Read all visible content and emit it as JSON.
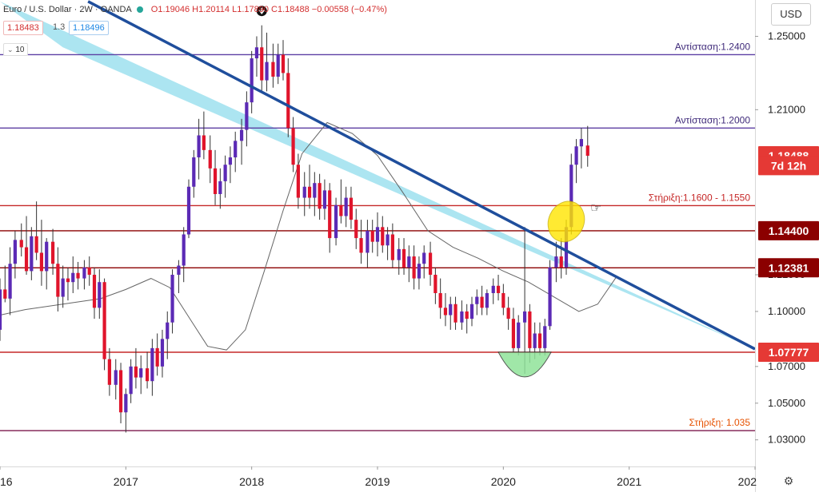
{
  "header": {
    "symbol": "Euro / U.S. Dollar · 2W · OANDA",
    "ohlc": "O1.19046 H1.20114 L1.17890 C1.18488 −0.00558 (−0.47%)",
    "bid": "1.18483",
    "spread": "1.3",
    "ask": "1.18496",
    "volume_label": "10",
    "currency_button": "USD",
    "colors": {
      "bid": "#d32f2f",
      "ask": "#1e88e5",
      "dot1": "#26a69a"
    }
  },
  "chart_data": {
    "type": "candlestick",
    "y_axis": {
      "ylim": [
        1.0155,
        1.2698
      ],
      "ticks": [
        "1.25000",
        "1.21000",
        "1.12000",
        "1.10000",
        "1.07000",
        "1.05000",
        "1.03000"
      ],
      "tick_values": [
        1.25,
        1.21,
        1.12,
        1.1,
        1.07,
        1.05,
        1.03
      ]
    },
    "x_axis": {
      "labels": [
        "16",
        "2017",
        "2018",
        "2019",
        "2020",
        "2021",
        "202"
      ],
      "label_values": [
        2016.0,
        2017.0,
        2018.0,
        2019.0,
        2020.0,
        2021.0,
        2022.0
      ],
      "xlim": [
        2016.0,
        2022.0
      ]
    },
    "levels": [
      {
        "name": "resistance-2400",
        "value": 1.24,
        "color": "#5c3fa3",
        "label": "Αντίσταση:1.2400",
        "label_color": "#3f2a7a"
      },
      {
        "name": "resistance-2000",
        "value": 1.2,
        "color": "#5c3fa3",
        "label": "Αντίσταση:1.2000",
        "label_color": "#3f2a7a"
      },
      {
        "name": "support-1600",
        "value": 1.1577,
        "color": "#c62828",
        "label": "Στήριξη:1.1600 - 1.1550",
        "label_color": "#c62828"
      },
      {
        "name": "support-1440",
        "value": 1.144,
        "color": "#8b0000",
        "label": "",
        "label_color": ""
      },
      {
        "name": "support-12381",
        "value": 1.12381,
        "color": "#8b0000",
        "label": "",
        "label_color": ""
      },
      {
        "name": "support-07777",
        "value": 1.07777,
        "color": "#c62828",
        "label": "",
        "label_color": ""
      },
      {
        "name": "support-1035",
        "value": 1.035,
        "color": "#7b1a4d",
        "label": "Στήριξη: 1.035",
        "label_color": "#e65100"
      }
    ],
    "price_tags": [
      {
        "text": "1.18488",
        "value": 1.18488,
        "bg": "#e53935"
      },
      {
        "text": "7d 12h",
        "value": 1.1795,
        "bg": "#e53935"
      },
      {
        "text": "1.14400",
        "value": 1.144,
        "bg": "#8b0000"
      },
      {
        "text": "1.12381",
        "value": 1.12381,
        "bg": "#8b0000"
      },
      {
        "text": "1.07777",
        "value": 1.07777,
        "bg": "#e53935"
      }
    ],
    "trend_line": {
      "x": [
        2016.7,
        2022.0
      ],
      "y": [
        1.269,
        1.0795
      ],
      "color": "#1f4e9c"
    },
    "channel": {
      "color": "#9ee0ef",
      "upper": [
        [
          2016.0,
          1.269
        ],
        [
          2022.0,
          1.0795
        ]
      ],
      "lower": [
        [
          2016.5,
          1.244
        ],
        [
          2022.0,
          1.0795
        ]
      ]
    },
    "moving_average": {
      "color": "#666666",
      "points": [
        [
          2016.0,
          1.098
        ],
        [
          2016.2,
          1.101
        ],
        [
          2016.5,
          1.104
        ],
        [
          2016.8,
          1.107
        ],
        [
          2017.0,
          1.112
        ],
        [
          2017.2,
          1.118
        ],
        [
          2017.35,
          1.113
        ],
        [
          2017.5,
          1.097
        ],
        [
          2017.65,
          1.081
        ],
        [
          2017.8,
          1.079
        ],
        [
          2017.95,
          1.09
        ],
        [
          2018.1,
          1.122
        ],
        [
          2018.25,
          1.155
        ],
        [
          2018.4,
          1.186
        ],
        [
          2018.6,
          1.203
        ],
        [
          2018.8,
          1.197
        ],
        [
          2019.0,
          1.185
        ],
        [
          2019.2,
          1.165
        ],
        [
          2019.4,
          1.144
        ],
        [
          2019.6,
          1.135
        ],
        [
          2019.8,
          1.129
        ],
        [
          2020.0,
          1.122
        ],
        [
          2020.2,
          1.116
        ],
        [
          2020.4,
          1.108
        ],
        [
          2020.6,
          1.1
        ],
        [
          2020.75,
          1.104
        ],
        [
          2020.9,
          1.119
        ]
      ]
    },
    "candles": [
      {
        "x": 2016.0,
        "o": 1.09,
        "h": 1.118,
        "l": 1.084,
        "c": 1.112
      },
      {
        "x": 2016.04,
        "o": 1.112,
        "h": 1.125,
        "l": 1.105,
        "c": 1.107
      },
      {
        "x": 2016.08,
        "o": 1.107,
        "h": 1.135,
        "l": 1.098,
        "c": 1.126
      },
      {
        "x": 2016.12,
        "o": 1.126,
        "h": 1.144,
        "l": 1.118,
        "c": 1.139
      },
      {
        "x": 2016.17,
        "o": 1.139,
        "h": 1.148,
        "l": 1.13,
        "c": 1.135
      },
      {
        "x": 2016.21,
        "o": 1.135,
        "h": 1.152,
        "l": 1.12,
        "c": 1.122
      },
      {
        "x": 2016.25,
        "o": 1.122,
        "h": 1.146,
        "l": 1.117,
        "c": 1.141
      },
      {
        "x": 2016.29,
        "o": 1.141,
        "h": 1.16,
        "l": 1.128,
        "c": 1.132
      },
      {
        "x": 2016.33,
        "o": 1.132,
        "h": 1.15,
        "l": 1.114,
        "c": 1.122
      },
      {
        "x": 2016.37,
        "o": 1.122,
        "h": 1.14,
        "l": 1.112,
        "c": 1.138
      },
      {
        "x": 2016.42,
        "o": 1.138,
        "h": 1.145,
        "l": 1.12,
        "c": 1.126
      },
      {
        "x": 2016.46,
        "o": 1.126,
        "h": 1.135,
        "l": 1.1,
        "c": 1.108
      },
      {
        "x": 2016.5,
        "o": 1.108,
        "h": 1.125,
        "l": 1.102,
        "c": 1.118
      },
      {
        "x": 2016.54,
        "o": 1.118,
        "h": 1.124,
        "l": 1.106,
        "c": 1.116
      },
      {
        "x": 2016.58,
        "o": 1.116,
        "h": 1.13,
        "l": 1.11,
        "c": 1.121
      },
      {
        "x": 2016.62,
        "o": 1.121,
        "h": 1.127,
        "l": 1.112,
        "c": 1.118
      },
      {
        "x": 2016.67,
        "o": 1.118,
        "h": 1.128,
        "l": 1.112,
        "c": 1.124
      },
      {
        "x": 2016.71,
        "o": 1.124,
        "h": 1.13,
        "l": 1.114,
        "c": 1.12
      },
      {
        "x": 2016.75,
        "o": 1.12,
        "h": 1.124,
        "l": 1.096,
        "c": 1.102
      },
      {
        "x": 2016.79,
        "o": 1.102,
        "h": 1.123,
        "l": 1.096,
        "c": 1.116
      },
      {
        "x": 2016.83,
        "o": 1.116,
        "h": 1.118,
        "l": 1.068,
        "c": 1.074
      },
      {
        "x": 2016.87,
        "o": 1.074,
        "h": 1.08,
        "l": 1.054,
        "c": 1.06
      },
      {
        "x": 2016.92,
        "o": 1.06,
        "h": 1.074,
        "l": 1.052,
        "c": 1.068
      },
      {
        "x": 2016.96,
        "o": 1.068,
        "h": 1.072,
        "l": 1.039,
        "c": 1.045
      },
      {
        "x": 2017.0,
        "o": 1.045,
        "h": 1.058,
        "l": 1.034,
        "c": 1.055
      },
      {
        "x": 2017.04,
        "o": 1.055,
        "h": 1.074,
        "l": 1.05,
        "c": 1.07
      },
      {
        "x": 2017.08,
        "o": 1.07,
        "h": 1.08,
        "l": 1.058,
        "c": 1.064
      },
      {
        "x": 2017.12,
        "o": 1.064,
        "h": 1.076,
        "l": 1.055,
        "c": 1.069
      },
      {
        "x": 2017.17,
        "o": 1.069,
        "h": 1.078,
        "l": 1.058,
        "c": 1.062
      },
      {
        "x": 2017.21,
        "o": 1.062,
        "h": 1.085,
        "l": 1.054,
        "c": 1.08
      },
      {
        "x": 2017.25,
        "o": 1.08,
        "h": 1.088,
        "l": 1.065,
        "c": 1.07
      },
      {
        "x": 2017.29,
        "o": 1.07,
        "h": 1.09,
        "l": 1.064,
        "c": 1.085
      },
      {
        "x": 2017.33,
        "o": 1.085,
        "h": 1.1,
        "l": 1.074,
        "c": 1.094
      },
      {
        "x": 2017.37,
        "o": 1.094,
        "h": 1.123,
        "l": 1.088,
        "c": 1.12
      },
      {
        "x": 2017.42,
        "o": 1.12,
        "h": 1.128,
        "l": 1.11,
        "c": 1.125
      },
      {
        "x": 2017.46,
        "o": 1.125,
        "h": 1.146,
        "l": 1.116,
        "c": 1.142
      },
      {
        "x": 2017.5,
        "o": 1.142,
        "h": 1.172,
        "l": 1.14,
        "c": 1.168
      },
      {
        "x": 2017.54,
        "o": 1.168,
        "h": 1.188,
        "l": 1.162,
        "c": 1.184
      },
      {
        "x": 2017.58,
        "o": 1.184,
        "h": 1.205,
        "l": 1.172,
        "c": 1.196
      },
      {
        "x": 2017.62,
        "o": 1.196,
        "h": 1.209,
        "l": 1.183,
        "c": 1.188
      },
      {
        "x": 2017.67,
        "o": 1.188,
        "h": 1.196,
        "l": 1.17,
        "c": 1.178
      },
      {
        "x": 2017.71,
        "o": 1.178,
        "h": 1.188,
        "l": 1.158,
        "c": 1.164
      },
      {
        "x": 2017.75,
        "o": 1.164,
        "h": 1.178,
        "l": 1.156,
        "c": 1.171
      },
      {
        "x": 2017.79,
        "o": 1.171,
        "h": 1.185,
        "l": 1.162,
        "c": 1.18
      },
      {
        "x": 2017.83,
        "o": 1.18,
        "h": 1.19,
        "l": 1.17,
        "c": 1.184
      },
      {
        "x": 2017.87,
        "o": 1.184,
        "h": 1.198,
        "l": 1.176,
        "c": 1.193
      },
      {
        "x": 2017.92,
        "o": 1.193,
        "h": 1.205,
        "l": 1.18,
        "c": 1.199
      },
      {
        "x": 2017.96,
        "o": 1.199,
        "h": 1.22,
        "l": 1.19,
        "c": 1.214
      },
      {
        "x": 2018.0,
        "o": 1.214,
        "h": 1.242,
        "l": 1.208,
        "c": 1.238
      },
      {
        "x": 2018.04,
        "o": 1.238,
        "h": 1.25,
        "l": 1.228,
        "c": 1.244
      },
      {
        "x": 2018.08,
        "o": 1.244,
        "h": 1.256,
        "l": 1.22,
        "c": 1.226
      },
      {
        "x": 2018.12,
        "o": 1.226,
        "h": 1.252,
        "l": 1.22,
        "c": 1.236
      },
      {
        "x": 2018.17,
        "o": 1.236,
        "h": 1.246,
        "l": 1.222,
        "c": 1.228
      },
      {
        "x": 2018.21,
        "o": 1.228,
        "h": 1.246,
        "l": 1.224,
        "c": 1.24
      },
      {
        "x": 2018.25,
        "o": 1.24,
        "h": 1.248,
        "l": 1.226,
        "c": 1.23
      },
      {
        "x": 2018.29,
        "o": 1.23,
        "h": 1.238,
        "l": 1.195,
        "c": 1.2
      },
      {
        "x": 2018.33,
        "o": 1.2,
        "h": 1.206,
        "l": 1.176,
        "c": 1.18
      },
      {
        "x": 2018.37,
        "o": 1.18,
        "h": 1.186,
        "l": 1.156,
        "c": 1.162
      },
      {
        "x": 2018.42,
        "o": 1.162,
        "h": 1.176,
        "l": 1.152,
        "c": 1.168
      },
      {
        "x": 2018.46,
        "o": 1.168,
        "h": 1.18,
        "l": 1.156,
        "c": 1.162
      },
      {
        "x": 2018.5,
        "o": 1.162,
        "h": 1.176,
        "l": 1.152,
        "c": 1.17
      },
      {
        "x": 2018.54,
        "o": 1.17,
        "h": 1.175,
        "l": 1.15,
        "c": 1.156
      },
      {
        "x": 2018.58,
        "o": 1.156,
        "h": 1.172,
        "l": 1.15,
        "c": 1.166
      },
      {
        "x": 2018.62,
        "o": 1.166,
        "h": 1.17,
        "l": 1.132,
        "c": 1.14
      },
      {
        "x": 2018.67,
        "o": 1.14,
        "h": 1.162,
        "l": 1.136,
        "c": 1.158
      },
      {
        "x": 2018.71,
        "o": 1.158,
        "h": 1.172,
        "l": 1.148,
        "c": 1.152
      },
      {
        "x": 2018.75,
        "o": 1.152,
        "h": 1.168,
        "l": 1.146,
        "c": 1.162
      },
      {
        "x": 2018.79,
        "o": 1.162,
        "h": 1.168,
        "l": 1.145,
        "c": 1.15
      },
      {
        "x": 2018.83,
        "o": 1.15,
        "h": 1.156,
        "l": 1.134,
        "c": 1.14
      },
      {
        "x": 2018.87,
        "o": 1.14,
        "h": 1.15,
        "l": 1.126,
        "c": 1.132
      },
      {
        "x": 2018.92,
        "o": 1.132,
        "h": 1.15,
        "l": 1.124,
        "c": 1.144
      },
      {
        "x": 2018.96,
        "o": 1.144,
        "h": 1.15,
        "l": 1.132,
        "c": 1.138
      },
      {
        "x": 2019.0,
        "o": 1.138,
        "h": 1.154,
        "l": 1.13,
        "c": 1.146
      },
      {
        "x": 2019.04,
        "o": 1.146,
        "h": 1.152,
        "l": 1.132,
        "c": 1.136
      },
      {
        "x": 2019.08,
        "o": 1.136,
        "h": 1.146,
        "l": 1.128,
        "c": 1.142
      },
      {
        "x": 2019.12,
        "o": 1.142,
        "h": 1.148,
        "l": 1.124,
        "c": 1.128
      },
      {
        "x": 2019.17,
        "o": 1.128,
        "h": 1.14,
        "l": 1.12,
        "c": 1.134
      },
      {
        "x": 2019.21,
        "o": 1.134,
        "h": 1.14,
        "l": 1.12,
        "c": 1.124
      },
      {
        "x": 2019.25,
        "o": 1.124,
        "h": 1.136,
        "l": 1.116,
        "c": 1.13
      },
      {
        "x": 2019.29,
        "o": 1.13,
        "h": 1.136,
        "l": 1.112,
        "c": 1.118
      },
      {
        "x": 2019.33,
        "o": 1.118,
        "h": 1.13,
        "l": 1.112,
        "c": 1.126
      },
      {
        "x": 2019.37,
        "o": 1.126,
        "h": 1.136,
        "l": 1.118,
        "c": 1.132
      },
      {
        "x": 2019.42,
        "o": 1.132,
        "h": 1.138,
        "l": 1.114,
        "c": 1.12
      },
      {
        "x": 2019.46,
        "o": 1.12,
        "h": 1.124,
        "l": 1.104,
        "c": 1.11
      },
      {
        "x": 2019.5,
        "o": 1.11,
        "h": 1.118,
        "l": 1.096,
        "c": 1.102
      },
      {
        "x": 2019.54,
        "o": 1.102,
        "h": 1.11,
        "l": 1.092,
        "c": 1.098
      },
      {
        "x": 2019.58,
        "o": 1.098,
        "h": 1.108,
        "l": 1.09,
        "c": 1.104
      },
      {
        "x": 2019.62,
        "o": 1.104,
        "h": 1.108,
        "l": 1.09,
        "c": 1.094
      },
      {
        "x": 2019.67,
        "o": 1.094,
        "h": 1.106,
        "l": 1.09,
        "c": 1.1
      },
      {
        "x": 2019.71,
        "o": 1.1,
        "h": 1.104,
        "l": 1.088,
        "c": 1.096
      },
      {
        "x": 2019.75,
        "o": 1.096,
        "h": 1.108,
        "l": 1.092,
        "c": 1.104
      },
      {
        "x": 2019.79,
        "o": 1.104,
        "h": 1.112,
        "l": 1.098,
        "c": 1.108
      },
      {
        "x": 2019.83,
        "o": 1.108,
        "h": 1.114,
        "l": 1.098,
        "c": 1.102
      },
      {
        "x": 2019.87,
        "o": 1.102,
        "h": 1.112,
        "l": 1.098,
        "c": 1.11
      },
      {
        "x": 2019.92,
        "o": 1.11,
        "h": 1.118,
        "l": 1.104,
        "c": 1.114
      },
      {
        "x": 2019.96,
        "o": 1.114,
        "h": 1.12,
        "l": 1.106,
        "c": 1.11
      },
      {
        "x": 2020.0,
        "o": 1.11,
        "h": 1.115,
        "l": 1.098,
        "c": 1.102
      },
      {
        "x": 2020.04,
        "o": 1.102,
        "h": 1.108,
        "l": 1.09,
        "c": 1.096
      },
      {
        "x": 2020.08,
        "o": 1.096,
        "h": 1.102,
        "l": 1.078,
        "c": 1.08
      },
      {
        "x": 2020.12,
        "o": 1.08,
        "h": 1.098,
        "l": 1.076,
        "c": 1.094
      },
      {
        "x": 2020.17,
        "o": 1.094,
        "h": 1.146,
        "l": 1.066,
        "c": 1.1
      },
      {
        "x": 2020.21,
        "o": 1.1,
        "h": 1.104,
        "l": 1.072,
        "c": 1.08
      },
      {
        "x": 2020.25,
        "o": 1.08,
        "h": 1.094,
        "l": 1.074,
        "c": 1.088
      },
      {
        "x": 2020.29,
        "o": 1.088,
        "h": 1.094,
        "l": 1.076,
        "c": 1.08
      },
      {
        "x": 2020.33,
        "o": 1.08,
        "h": 1.096,
        "l": 1.076,
        "c": 1.092
      },
      {
        "x": 2020.37,
        "o": 1.092,
        "h": 1.128,
        "l": 1.09,
        "c": 1.124
      },
      {
        "x": 2020.42,
        "o": 1.124,
        "h": 1.138,
        "l": 1.116,
        "c": 1.13
      },
      {
        "x": 2020.46,
        "o": 1.13,
        "h": 1.14,
        "l": 1.118,
        "c": 1.124
      },
      {
        "x": 2020.5,
        "o": 1.124,
        "h": 1.15,
        "l": 1.12,
        "c": 1.146
      },
      {
        "x": 2020.54,
        "o": 1.146,
        "h": 1.186,
        "l": 1.142,
        "c": 1.18
      },
      {
        "x": 2020.58,
        "o": 1.18,
        "h": 1.194,
        "l": 1.17,
        "c": 1.19
      },
      {
        "x": 2020.62,
        "o": 1.19,
        "h": 1.2,
        "l": 1.178,
        "c": 1.194
      },
      {
        "x": 2020.67,
        "o": 1.19046,
        "h": 1.20114,
        "l": 1.1789,
        "c": 1.18488
      }
    ],
    "annotations": [
      {
        "name": "yellow-ellipse-highlight",
        "x": 2020.5,
        "y": 1.149,
        "color": "#ffe600"
      },
      {
        "name": "green-cup-shape",
        "x": 2020.17,
        "y": 1.0778,
        "color": "#90e39a"
      }
    ]
  }
}
